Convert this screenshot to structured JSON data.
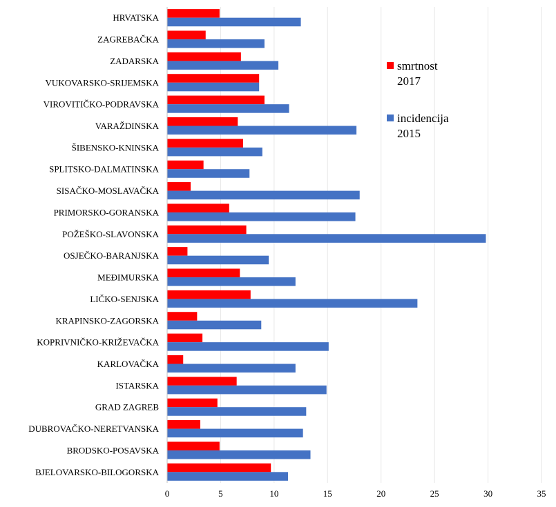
{
  "chart_data": {
    "type": "bar",
    "orientation": "horizontal",
    "categories": [
      "HRVATSKA",
      "ZAGREBAČKA",
      "ZADARSKA",
      "VUKOVARSKO-SRIJEMSKA",
      "VIROVITIČKO-PODRAVSKA",
      "VARAŽDINSKA",
      "ŠIBENSKO-KNINSKA",
      "SPLITSKO-DALMATINSKA",
      "SISAČKO-MOSLAVAČKA",
      "PRIMORSKO-GORANSKA",
      "POŽEŠKO-SLAVONSKA",
      "OSJEČKO-BARANJSKA",
      "MEĐIMURSKA",
      "LIČKO-SENJSKA",
      "KRAPINSKO-ZAGORSKA",
      "KOPRIVNIČKO-KRIŽEVAČKA",
      "KARLOVAČKA",
      "ISTARSKA",
      "GRAD ZAGREB",
      "DUBROVAČKO-NERETVANSKA",
      "BRODSKO-POSAVSKA",
      "BJELOVARSKO-BILOGORSKA"
    ],
    "series": [
      {
        "name_lines": [
          "smrtnost",
          "2017"
        ],
        "color": "#ff0000",
        "values": [
          4.9,
          3.6,
          6.9,
          8.6,
          9.1,
          6.6,
          7.1,
          3.4,
          2.2,
          5.8,
          7.4,
          1.9,
          6.8,
          7.8,
          2.8,
          3.3,
          1.5,
          6.5,
          4.7,
          3.1,
          4.9,
          9.7
        ]
      },
      {
        "name_lines": [
          "incidencija",
          "2015"
        ],
        "color": "#4472c4",
        "values": [
          12.5,
          9.1,
          10.4,
          8.6,
          11.4,
          17.7,
          8.9,
          7.7,
          18.0,
          17.6,
          29.8,
          9.5,
          12.0,
          23.4,
          8.8,
          15.1,
          12.0,
          14.9,
          13.0,
          12.7,
          13.4,
          11.3
        ]
      }
    ],
    "xticks": [
      "0",
      "5",
      "10",
      "15",
      "20",
      "25",
      "30",
      "35"
    ],
    "xlim": [
      0,
      35
    ],
    "title": "",
    "xlabel": "",
    "ylabel": "",
    "grid": "vertical",
    "legend_position": "top-right"
  }
}
